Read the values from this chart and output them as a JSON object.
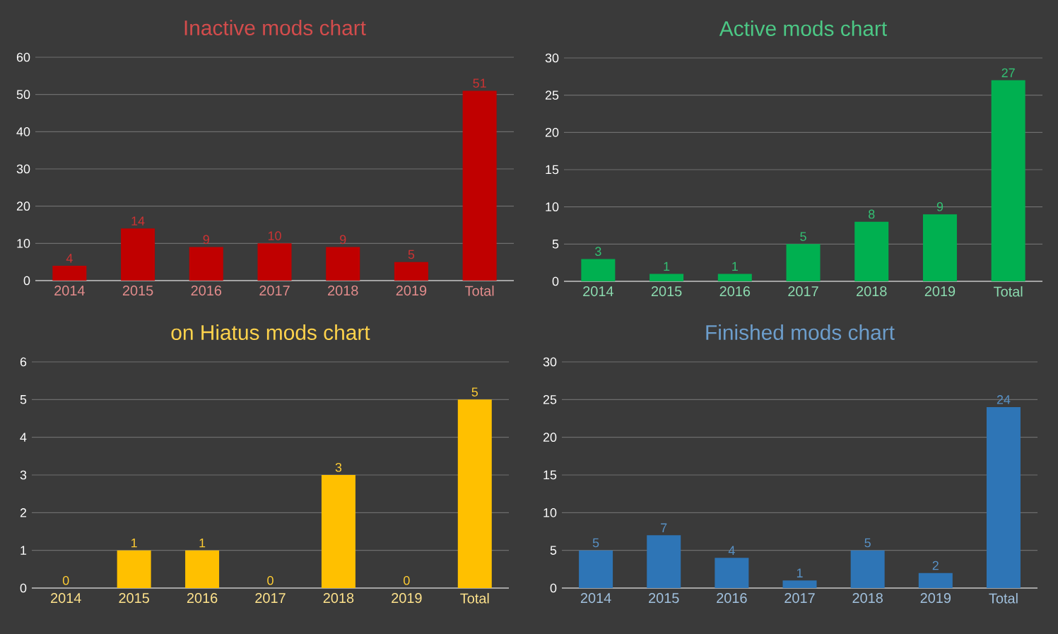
{
  "chart_data": [
    {
      "type": "bar",
      "title": "Inactive mods chart",
      "categories": [
        "2014",
        "2015",
        "2016",
        "2017",
        "2018",
        "2019",
        "Total"
      ],
      "values": [
        4,
        14,
        9,
        10,
        9,
        5,
        51
      ],
      "color": "#c00000",
      "ylim": [
        0,
        60
      ],
      "yticks": [
        0,
        10,
        20,
        30,
        40,
        50,
        60
      ],
      "grid": "y",
      "data_labels": true
    },
    {
      "type": "bar",
      "title": "Active mods chart",
      "categories": [
        "2014",
        "2015",
        "2016",
        "2017",
        "2018",
        "2019",
        "Total"
      ],
      "values": [
        3,
        1,
        1,
        5,
        8,
        9,
        27
      ],
      "color": "#00b050",
      "ylim": [
        0,
        30
      ],
      "yticks": [
        0,
        5,
        10,
        15,
        20,
        25,
        30
      ],
      "grid": "y",
      "data_labels": true
    },
    {
      "type": "bar",
      "title": "on Hiatus mods chart",
      "categories": [
        "2014",
        "2015",
        "2016",
        "2017",
        "2018",
        "2019",
        "Total"
      ],
      "values": [
        0,
        1,
        1,
        0,
        3,
        0,
        5
      ],
      "color": "#ffc000",
      "ylim": [
        0,
        6
      ],
      "yticks": [
        0,
        1,
        2,
        3,
        4,
        5,
        6
      ],
      "grid": "y",
      "data_labels": true
    },
    {
      "type": "bar",
      "title": "Finished mods chart",
      "categories": [
        "2014",
        "2015",
        "2016",
        "2017",
        "2018",
        "2019",
        "Total"
      ],
      "values": [
        5,
        7,
        4,
        1,
        5,
        2,
        24
      ],
      "color": "#2e75b6",
      "ylim": [
        0,
        30
      ],
      "yticks": [
        0,
        5,
        10,
        15,
        20,
        25,
        30
      ],
      "grid": "y",
      "data_labels": true
    }
  ]
}
